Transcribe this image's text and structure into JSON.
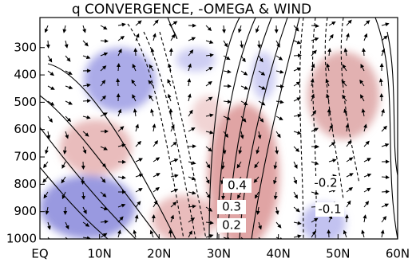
{
  "chart_data": {
    "type": "contour",
    "title": "q CONVERGENCE, -OMEGA & WIND",
    "xlim": [
      0,
      60
    ],
    "xticks": [
      {
        "value": 0,
        "label": "EQ"
      },
      {
        "value": 10,
        "label": "10N"
      },
      {
        "value": 20,
        "label": "20N"
      },
      {
        "value": 30,
        "label": "30N"
      },
      {
        "value": 40,
        "label": "40N"
      },
      {
        "value": 50,
        "label": "50N"
      },
      {
        "value": 60,
        "label": "60N"
      }
    ],
    "ylim": [
      1000,
      190
    ],
    "yticks": [
      300,
      400,
      500,
      600,
      700,
      800,
      900,
      1000
    ],
    "contour_labels": [
      "0.4",
      "0.3",
      "0.2",
      "-0.2",
      "-0.1"
    ]
  }
}
